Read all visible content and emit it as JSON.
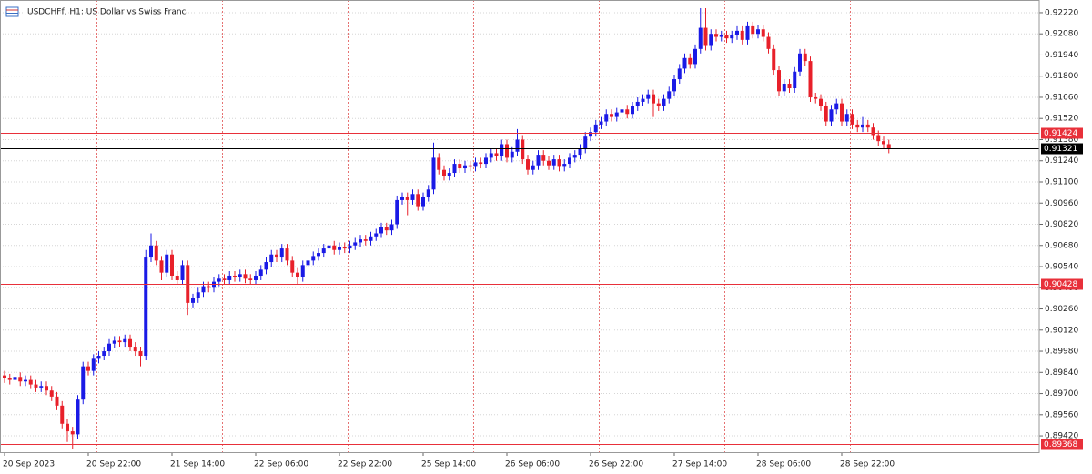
{
  "chart_data": {
    "type": "candlestick",
    "title": "USDCHFf, H1:  US Dollar vs Swiss Franc",
    "up_color": "#1a1ae6",
    "down_color": "#e8202a",
    "grid": true,
    "ylim": [
      0.89312,
      0.92304
    ],
    "yticks": [
      {
        "value": 0.9222,
        "label": "0.92220"
      },
      {
        "value": 0.9208,
        "label": "0.92080"
      },
      {
        "value": 0.9194,
        "label": "0.91940"
      },
      {
        "value": 0.918,
        "label": "0.91800"
      },
      {
        "value": 0.9166,
        "label": "0.91660"
      },
      {
        "value": 0.9152,
        "label": "0.91520"
      },
      {
        "value": 0.9138,
        "label": "0.91380"
      },
      {
        "value": 0.9124,
        "label": "0.91240"
      },
      {
        "value": 0.911,
        "label": "0.91100"
      },
      {
        "value": 0.9096,
        "label": "0.90960"
      },
      {
        "value": 0.9082,
        "label": "0.90820"
      },
      {
        "value": 0.9068,
        "label": "0.90680"
      },
      {
        "value": 0.9054,
        "label": "0.90540"
      },
      {
        "value": 0.904,
        "label": "0.90400"
      },
      {
        "value": 0.9026,
        "label": "0.90260"
      },
      {
        "value": 0.9012,
        "label": "0.90120"
      },
      {
        "value": 0.8998,
        "label": "0.89980"
      },
      {
        "value": 0.8984,
        "label": "0.89840"
      },
      {
        "value": 0.897,
        "label": "0.89700"
      },
      {
        "value": 0.8956,
        "label": "0.89560"
      },
      {
        "value": 0.8942,
        "label": "0.89420"
      }
    ],
    "levels": [
      {
        "price": 0.91424,
        "color": "#e8303a"
      },
      {
        "price": 0.91321,
        "color": "#000000"
      },
      {
        "price": 0.90428,
        "color": "#e8303a"
      },
      {
        "price": 0.89368,
        "color": "#e8303a"
      }
    ],
    "categories": [
      "20 Sep 2023",
      null,
      null,
      null,
      null,
      null,
      null,
      null,
      null,
      null,
      null,
      null,
      null,
      null,
      null,
      null,
      "20 Sep 22:00",
      null,
      null,
      null,
      null,
      null,
      null,
      null,
      null,
      null,
      null,
      null,
      null,
      null,
      null,
      null,
      "21 Sep 14:00",
      null,
      null,
      null,
      null,
      null,
      null,
      null,
      null,
      null,
      null,
      null,
      null,
      null,
      null,
      null,
      "22 Sep 06:00",
      null,
      null,
      null,
      null,
      null,
      null,
      null,
      null,
      null,
      null,
      null,
      null,
      null,
      null,
      null,
      "22 Sep 22:00",
      null,
      null,
      null,
      null,
      null,
      null,
      null,
      null,
      null,
      null,
      null,
      null,
      null,
      null,
      null,
      "25 Sep 14:00",
      null,
      null,
      null,
      null,
      null,
      null,
      null,
      null,
      null,
      null,
      null,
      null,
      null,
      null,
      null,
      "26 Sep 06:00",
      null,
      null,
      null,
      null,
      null,
      null,
      null,
      null,
      null,
      null,
      null,
      null,
      null,
      null,
      null,
      "26 Sep 22:00",
      null,
      null,
      null,
      null,
      null,
      null,
      null,
      null,
      null,
      null,
      null,
      null,
      null,
      null,
      null,
      "27 Sep 14:00",
      null,
      null,
      null,
      null,
      null,
      null,
      null,
      null,
      null,
      null,
      null,
      null,
      null,
      null,
      null,
      "28 Sep 06:00",
      null,
      null,
      null,
      null,
      null,
      null,
      null,
      null,
      null,
      null,
      null,
      null,
      null,
      null,
      null,
      "28 Sep 22:00",
      null,
      null,
      null,
      null,
      null,
      null,
      null,
      null,
      null
    ],
    "open": [
      0.8982,
      0.898,
      0.8979,
      0.8981,
      0.8978,
      0.8979,
      0.8976,
      0.8974,
      0.8975,
      0.8972,
      0.8968,
      0.8962,
      0.895,
      0.8945,
      0.8943,
      0.8966,
      0.8988,
      0.8985,
      0.8993,
      0.8995,
      0.8998,
      0.9003,
      0.9005,
      0.9004,
      0.9006,
      0.9001,
      0.8998,
      0.8995,
      0.906,
      0.9068,
      0.9058,
      0.905,
      0.9062,
      0.9048,
      0.9045,
      0.9055,
      0.903,
      0.9033,
      0.9037,
      0.9041,
      0.904,
      0.9044,
      0.9046,
      0.9045,
      0.9048,
      0.9047,
      0.9049,
      0.9046,
      0.9045,
      0.9048,
      0.9052,
      0.9057,
      0.9062,
      0.906,
      0.9066,
      0.9058,
      0.905,
      0.9047,
      0.9055,
      0.9058,
      0.9061,
      0.9063,
      0.9066,
      0.9068,
      0.9065,
      0.9067,
      0.9066,
      0.9068,
      0.907,
      0.9072,
      0.9071,
      0.9074,
      0.9076,
      0.908,
      0.9078,
      0.9082,
      0.9098,
      0.91,
      0.9098,
      0.9102,
      0.9094,
      0.91,
      0.9105,
      0.9126,
      0.9118,
      0.9114,
      0.9116,
      0.9122,
      0.9119,
      0.9121,
      0.912,
      0.9123,
      0.9122,
      0.9126,
      0.9129,
      0.9127,
      0.9135,
      0.9126,
      0.913,
      0.9138,
      0.9125,
      0.9118,
      0.9121,
      0.9128,
      0.9124,
      0.9121,
      0.9125,
      0.912,
      0.9122,
      0.9126,
      0.9128,
      0.9132,
      0.914,
      0.9143,
      0.9148,
      0.915,
      0.9155,
      0.9153,
      0.9156,
      0.9158,
      0.9155,
      0.916,
      0.9163,
      0.9165,
      0.9168,
      0.9162,
      0.916,
      0.9165,
      0.917,
      0.9178,
      0.9185,
      0.9192,
      0.9188,
      0.9198,
      0.9212,
      0.92,
      0.9208,
      0.9206,
      0.9207,
      0.9205,
      0.9207,
      0.921,
      0.9204,
      0.9213,
      0.9208,
      0.9211,
      0.9206,
      0.9198,
      0.9184,
      0.917,
      0.9175,
      0.9172,
      0.9183,
      0.9195,
      0.919,
      0.9166,
      0.9165,
      0.916,
      0.915,
      0.9158,
      0.9162,
      0.915,
      0.9155,
      0.9148,
      0.9146,
      0.9148,
      0.9146,
      0.9141,
      0.9137,
      0.9135
    ],
    "high": [
      0.8985,
      0.8983,
      0.8984,
      0.8984,
      0.8982,
      0.8982,
      0.8979,
      0.8978,
      0.8978,
      0.8975,
      0.8971,
      0.8965,
      0.8953,
      0.8948,
      0.8969,
      0.8991,
      0.8991,
      0.8996,
      0.8998,
      0.9001,
      0.9006,
      0.9008,
      0.9008,
      0.9009,
      0.9009,
      0.9004,
      0.9001,
      0.9065,
      0.9076,
      0.9071,
      0.9061,
      0.9065,
      0.9065,
      0.9051,
      0.9058,
      0.9058,
      0.9036,
      0.904,
      0.9044,
      0.9044,
      0.9047,
      0.9049,
      0.9049,
      0.9051,
      0.9051,
      0.9052,
      0.9052,
      0.9049,
      0.9051,
      0.9055,
      0.906,
      0.9065,
      0.9065,
      0.9069,
      0.9069,
      0.9061,
      0.9053,
      0.9058,
      0.9061,
      0.9064,
      0.9066,
      0.9069,
      0.9071,
      0.9071,
      0.907,
      0.907,
      0.9071,
      0.9073,
      0.9075,
      0.9075,
      0.9077,
      0.9079,
      0.9083,
      0.9083,
      0.9085,
      0.9101,
      0.9103,
      0.9103,
      0.9105,
      0.9105,
      0.9103,
      0.9108,
      0.9136,
      0.9129,
      0.9121,
      0.9119,
      0.9125,
      0.9125,
      0.9124,
      0.9124,
      0.9126,
      0.9126,
      0.9129,
      0.9132,
      0.9132,
      0.9138,
      0.9138,
      0.9133,
      0.9145,
      0.9141,
      0.9128,
      0.9124,
      0.9131,
      0.9131,
      0.9127,
      0.9128,
      0.9128,
      0.9125,
      0.9129,
      0.9131,
      0.9135,
      0.9143,
      0.9146,
      0.9151,
      0.9153,
      0.9158,
      0.9158,
      0.9159,
      0.9161,
      0.9161,
      0.9163,
      0.9166,
      0.9168,
      0.9171,
      0.9171,
      0.9165,
      0.9168,
      0.9173,
      0.9181,
      0.9188,
      0.9195,
      0.9195,
      0.9201,
      0.9225,
      0.9225,
      0.9211,
      0.9211,
      0.921,
      0.921,
      0.921,
      0.9213,
      0.9213,
      0.9216,
      0.9216,
      0.9214,
      0.9214,
      0.9209,
      0.9201,
      0.9187,
      0.9178,
      0.9178,
      0.9186,
      0.9198,
      0.9198,
      0.9193,
      0.9169,
      0.9168,
      0.9163,
      0.9161,
      0.9165,
      0.9165,
      0.9158,
      0.9158,
      0.9151,
      0.9153,
      0.9151,
      0.9149,
      0.9144,
      0.914,
      0.9138
    ],
    "low": [
      0.8977,
      0.8976,
      0.8976,
      0.8975,
      0.8975,
      0.8973,
      0.8971,
      0.8971,
      0.8969,
      0.8965,
      0.8959,
      0.8947,
      0.8938,
      0.8933,
      0.894,
      0.8963,
      0.8982,
      0.8982,
      0.899,
      0.8992,
      0.8995,
      0.9,
      0.9001,
      0.9001,
      0.8998,
      0.8995,
      0.8988,
      0.8992,
      0.9057,
      0.9055,
      0.9045,
      0.9047,
      0.9045,
      0.9042,
      0.9042,
      0.9022,
      0.9027,
      0.903,
      0.9034,
      0.9037,
      0.9037,
      0.9041,
      0.9042,
      0.9042,
      0.9044,
      0.9044,
      0.9043,
      0.9042,
      0.9042,
      0.9045,
      0.9049,
      0.9054,
      0.9057,
      0.9057,
      0.9055,
      0.9047,
      0.9042,
      0.9044,
      0.9052,
      0.9055,
      0.9058,
      0.906,
      0.9063,
      0.9062,
      0.9062,
      0.9063,
      0.9063,
      0.9065,
      0.9067,
      0.9068,
      0.9068,
      0.9071,
      0.9073,
      0.9075,
      0.9075,
      0.9079,
      0.9095,
      0.9088,
      0.9095,
      0.9091,
      0.9091,
      0.9097,
      0.9102,
      0.9115,
      0.9111,
      0.9111,
      0.9113,
      0.9116,
      0.9116,
      0.9117,
      0.9117,
      0.9119,
      0.9119,
      0.9123,
      0.9124,
      0.9124,
      0.9123,
      0.9123,
      0.9127,
      0.9122,
      0.9115,
      0.9115,
      0.9118,
      0.9121,
      0.9118,
      0.9118,
      0.9117,
      0.9117,
      0.9119,
      0.9123,
      0.9125,
      0.9129,
      0.9137,
      0.914,
      0.9145,
      0.9147,
      0.915,
      0.915,
      0.9153,
      0.9152,
      0.9152,
      0.9157,
      0.916,
      0.9162,
      0.9153,
      0.9157,
      0.9157,
      0.9162,
      0.9167,
      0.9175,
      0.9182,
      0.9185,
      0.9185,
      0.9195,
      0.9197,
      0.9197,
      0.9203,
      0.9203,
      0.9202,
      0.9202,
      0.9204,
      0.9201,
      0.9201,
      0.9205,
      0.9205,
      0.9203,
      0.9195,
      0.9181,
      0.9167,
      0.9167,
      0.9169,
      0.9169,
      0.918,
      0.9187,
      0.9163,
      0.9162,
      0.9157,
      0.9147,
      0.9147,
      0.9155,
      0.9147,
      0.9147,
      0.9145,
      0.9143,
      0.9143,
      0.9143,
      0.9138,
      0.9134,
      0.9132,
      0.9129
    ],
    "close": [
      0.898,
      0.8979,
      0.8981,
      0.8978,
      0.8979,
      0.8976,
      0.8974,
      0.8975,
      0.8972,
      0.8968,
      0.8962,
      0.895,
      0.8945,
      0.8943,
      0.8966,
      0.8988,
      0.8985,
      0.8993,
      0.8995,
      0.8998,
      0.9003,
      0.9005,
      0.9004,
      0.9006,
      0.9001,
      0.8998,
      0.8995,
      0.906,
      0.9068,
      0.9058,
      0.905,
      0.9062,
      0.9048,
      0.9045,
      0.9055,
      0.903,
      0.9033,
      0.9037,
      0.9041,
      0.904,
      0.9044,
      0.9046,
      0.9045,
      0.9048,
      0.9047,
      0.9049,
      0.9046,
      0.9045,
      0.9048,
      0.9052,
      0.9057,
      0.9062,
      0.906,
      0.9066,
      0.9058,
      0.905,
      0.9047,
      0.9055,
      0.9058,
      0.9061,
      0.9063,
      0.9066,
      0.9068,
      0.9065,
      0.9067,
      0.9066,
      0.9068,
      0.907,
      0.9072,
      0.9071,
      0.9074,
      0.9076,
      0.908,
      0.9078,
      0.9082,
      0.9098,
      0.91,
      0.9098,
      0.9102,
      0.9094,
      0.91,
      0.9105,
      0.9126,
      0.9118,
      0.9114,
      0.9116,
      0.9122,
      0.9119,
      0.9121,
      0.912,
      0.9123,
      0.9122,
      0.9126,
      0.9129,
      0.9127,
      0.9135,
      0.9126,
      0.913,
      0.9138,
      0.9125,
      0.9118,
      0.9121,
      0.9128,
      0.9124,
      0.9121,
      0.9125,
      0.912,
      0.9122,
      0.9126,
      0.9128,
      0.9132,
      0.914,
      0.9143,
      0.9148,
      0.915,
      0.9155,
      0.9153,
      0.9156,
      0.9158,
      0.9155,
      0.916,
      0.9163,
      0.9165,
      0.9168,
      0.9162,
      0.916,
      0.9165,
      0.917,
      0.9178,
      0.9185,
      0.9192,
      0.9188,
      0.9198,
      0.9212,
      0.92,
      0.9208,
      0.9206,
      0.9207,
      0.9205,
      0.9207,
      0.921,
      0.9204,
      0.9213,
      0.9208,
      0.9211,
      0.9206,
      0.9198,
      0.9184,
      0.917,
      0.9175,
      0.9172,
      0.9183,
      0.9195,
      0.919,
      0.9166,
      0.9165,
      0.916,
      0.915,
      0.9158,
      0.9162,
      0.915,
      0.9155,
      0.9148,
      0.9146,
      0.9148,
      0.9146,
      0.9141,
      0.9137,
      0.9135,
      0.9132
    ]
  }
}
